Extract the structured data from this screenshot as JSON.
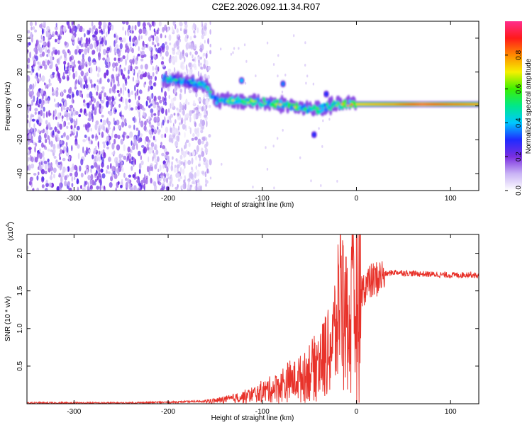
{
  "title": "C2E2.2026.092.11.34.R07",
  "chart_data": [
    {
      "type": "heatmap",
      "name": "spectrogram",
      "xlabel": "Height of straight line (km)",
      "ylabel": "Frequency (Hz)",
      "xlim": [
        -350,
        130
      ],
      "ylim": [
        -50,
        50
      ],
      "xticks": [
        -300,
        -200,
        -100,
        0,
        100
      ],
      "xtick_labels": [
        "-300",
        "-200",
        "-100",
        "0",
        "100"
      ],
      "yticks": [
        -40,
        -20,
        0,
        20,
        40
      ],
      "ytick_labels": [
        "-40",
        "-20",
        "0",
        "20",
        "40"
      ],
      "colorbar": {
        "label": "Normalized spectral amplitude",
        "range": [
          0,
          1
        ],
        "ticks": [
          0.0,
          0.2,
          0.4,
          0.6,
          0.8
        ],
        "tick_labels": [
          "0.0",
          "0.2",
          "0.4",
          "0.6",
          "0.8"
        ],
        "colormap": [
          "#ffffff",
          "#c9b3f5",
          "#7a2ee0",
          "#1f2bff",
          "#00c8ff",
          "#00e88a",
          "#3cf000",
          "#f5f000",
          "#ff8a00",
          "#ff1a1a",
          "#ff2d8c"
        ]
      },
      "noise_region": {
        "x": [
          -350,
          -155
        ],
        "amplitude": 0.15
      },
      "signal_track": [
        {
          "x": -205,
          "freq": 16,
          "amp": 0.5
        },
        {
          "x": -180,
          "freq": 15,
          "amp": 0.45
        },
        {
          "x": -160,
          "freq": 12,
          "amp": 0.5
        },
        {
          "x": -150,
          "freq": 3,
          "amp": 0.55
        },
        {
          "x": -120,
          "freq": 3,
          "amp": 0.6
        },
        {
          "x": -100,
          "freq": 2,
          "amp": 0.6
        },
        {
          "x": -80,
          "freq": 1,
          "amp": 0.65
        },
        {
          "x": -60,
          "freq": -1,
          "amp": 0.6
        },
        {
          "x": -40,
          "freq": -2,
          "amp": 0.55
        },
        {
          "x": -20,
          "freq": 1,
          "amp": 0.65
        },
        {
          "x": 0,
          "freq": 1,
          "amp": 0.7
        },
        {
          "x": 40,
          "freq": 1,
          "amp": 0.75
        },
        {
          "x": 70,
          "freq": 1,
          "amp": 0.9
        },
        {
          "x": 100,
          "freq": 1,
          "amp": 0.8
        },
        {
          "x": 130,
          "freq": 1,
          "amp": 0.75
        }
      ],
      "side_blobs": [
        {
          "x": -122,
          "freq": 15,
          "amp": 0.4
        },
        {
          "x": -78,
          "freq": 13,
          "amp": 0.35
        },
        {
          "x": -45,
          "freq": -17,
          "amp": 0.3
        },
        {
          "x": -32,
          "freq": 7,
          "amp": 0.3
        }
      ]
    },
    {
      "type": "line",
      "name": "snr",
      "xlabel": "Height of straight line (km)",
      "ylabel": "SNR (10 * v/v)",
      "multiplier_label": "(x10",
      "multiplier_exp": "4",
      "multiplier_close": ")",
      "xlim": [
        -350,
        130
      ],
      "ylim": [
        0,
        2.25
      ],
      "xticks": [
        -300,
        -200,
        -100,
        0,
        100
      ],
      "xtick_labels": [
        "-300",
        "-200",
        "-100",
        "0",
        "100"
      ],
      "yticks": [
        0.5,
        1.0,
        1.5,
        2.0
      ],
      "ytick_labels": [
        "0.5",
        "1.0",
        "1.5",
        "2.0"
      ],
      "color": "#e8322a",
      "series": [
        {
          "name": "SNR",
          "x": [
            -350,
            -300,
            -250,
            -200,
            -170,
            -150,
            -130,
            -110,
            -90,
            -70,
            -55,
            -45,
            -35,
            -28,
            -22,
            -18,
            -15,
            -12,
            -8,
            -5,
            -2,
            0,
            5,
            10,
            20,
            30,
            40,
            50,
            60,
            80,
            100,
            110,
            120,
            130
          ],
          "y": [
            0.01,
            0.01,
            0.01,
            0.02,
            0.03,
            0.04,
            0.07,
            0.12,
            0.2,
            0.3,
            0.38,
            0.5,
            0.65,
            0.75,
            0.95,
            1.15,
            1.3,
            1.05,
            0.95,
            1.2,
            1.3,
            1.4,
            1.5,
            1.58,
            1.65,
            1.72,
            1.75,
            1.74,
            1.73,
            1.72,
            1.71,
            1.71,
            1.72,
            1.7
          ],
          "peaks": [
            {
              "x": -17,
              "y": 2.25
            },
            {
              "x": -14,
              "y": 2.1
            },
            {
              "x": -11,
              "y": 1.95
            }
          ]
        }
      ]
    }
  ]
}
